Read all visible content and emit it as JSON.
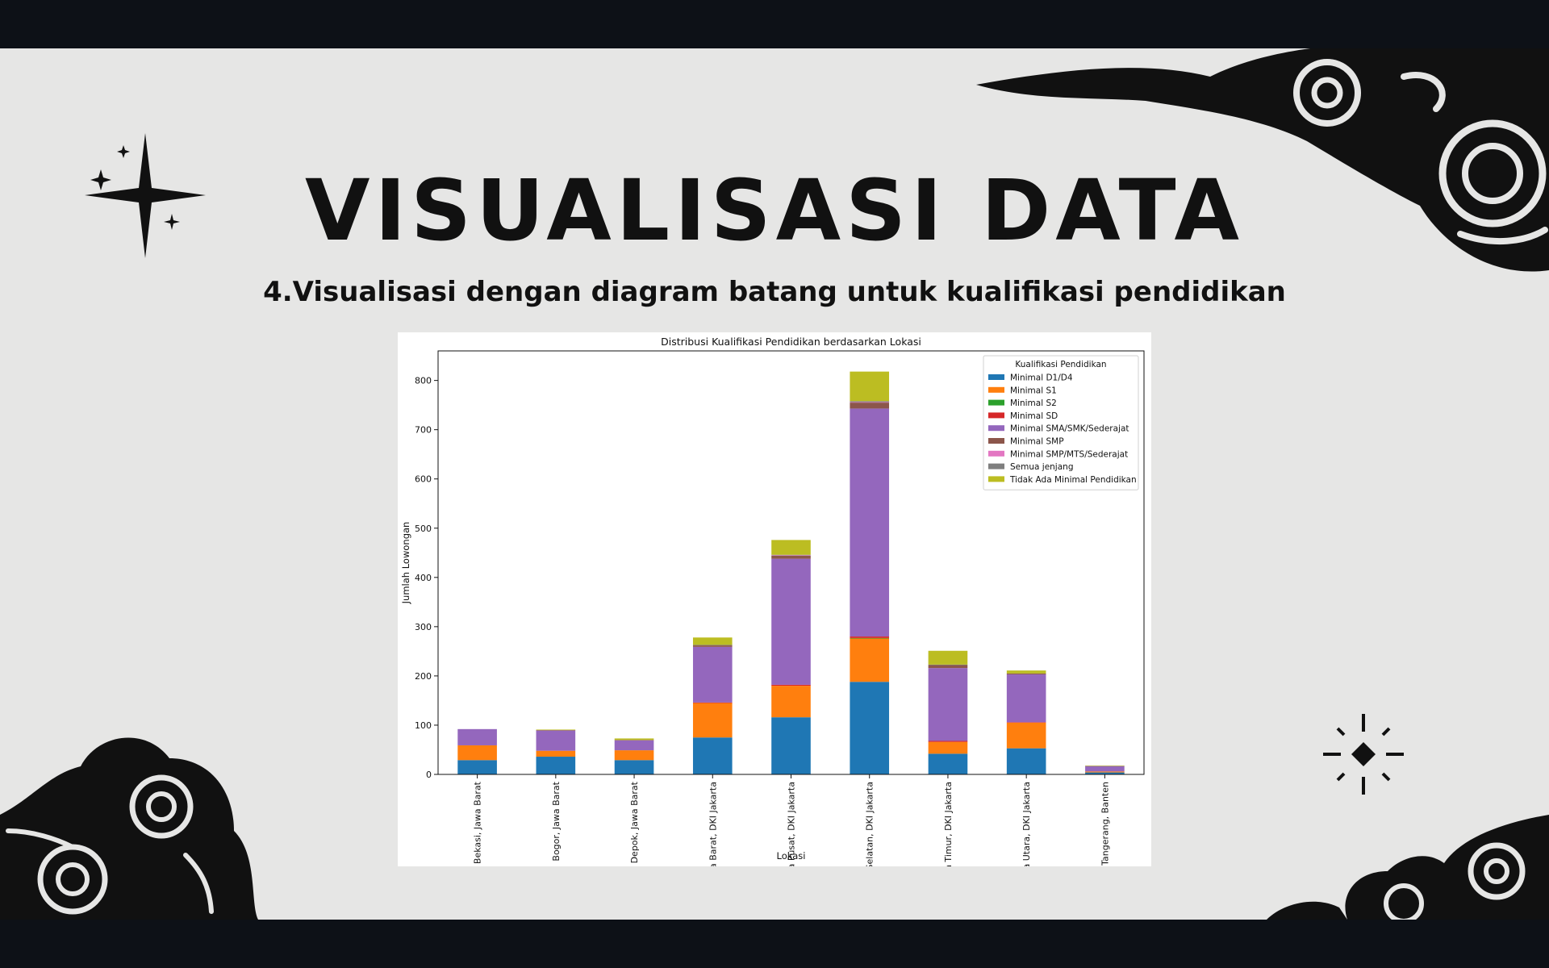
{
  "slide": {
    "title": "VISUALISASI DATA",
    "subtitle": "4.Visualisasi dengan diagram batang untuk kualifikasi pendidikan",
    "background_color": "#e6e6e5",
    "decoration_color": "#111111"
  },
  "chart_data": {
    "type": "bar",
    "stacked": true,
    "title": "Distribusi Kualifikasi Pendidikan berdasarkan Lokasi",
    "xlabel": "Lokasi",
    "ylabel": "Jumlah Lowongan",
    "ylim": [
      0,
      860
    ],
    "yticks": [
      0,
      100,
      200,
      300,
      400,
      500,
      600,
      700,
      800
    ],
    "legend_title": "Kualifikasi Pendidikan",
    "legend_position": "top-right",
    "grid": false,
    "categories": [
      "Bekasi, Jawa Barat",
      "Bogor, Jawa Barat",
      "Depok, Jawa Barat",
      "Jakarta Barat, DKI Jakarta",
      "Jakarta Pusat, DKI Jakarta",
      "Jakarta Selatan, DKI Jakarta",
      "Jakarta Timur, DKI Jakarta",
      "Jakarta Utara, DKI Jakarta",
      "Tangerang, Banten"
    ],
    "series": [
      {
        "name": "Minimal D1/D4",
        "color": "#1f77b4",
        "values": [
          29,
          36,
          29,
          75,
          116,
          188,
          42,
          53,
          4
        ]
      },
      {
        "name": "Minimal S1",
        "color": "#ff7f0e",
        "values": [
          30,
          12,
          20,
          70,
          64,
          88,
          24,
          52,
          2
        ]
      },
      {
        "name": "Minimal S2",
        "color": "#2ca02c",
        "values": [
          0,
          0,
          0,
          0,
          0,
          1,
          0,
          0,
          0
        ]
      },
      {
        "name": "Minimal SD",
        "color": "#d62728",
        "values": [
          0,
          0,
          0,
          1,
          2,
          3,
          2,
          1,
          0
        ]
      },
      {
        "name": "Minimal SMA/SMK/Sederajat",
        "color": "#9467bd",
        "values": [
          33,
          41,
          20,
          113,
          256,
          463,
          148,
          97,
          11
        ]
      },
      {
        "name": "Minimal SMP",
        "color": "#8c564b",
        "values": [
          0,
          1,
          1,
          3,
          6,
          12,
          6,
          2,
          0
        ]
      },
      {
        "name": "Minimal SMP/MTS/Sederajat",
        "color": "#e377c2",
        "values": [
          0,
          0,
          0,
          0,
          1,
          1,
          0,
          0,
          0
        ]
      },
      {
        "name": "Semua jenjang",
        "color": "#7f7f7f",
        "values": [
          0,
          0,
          0,
          1,
          1,
          2,
          1,
          0,
          0
        ]
      },
      {
        "name": "Tidak Ada Minimal Pendidikan",
        "color": "#bcbd22",
        "values": [
          0,
          1,
          3,
          15,
          30,
          60,
          28,
          6,
          1
        ]
      }
    ]
  }
}
